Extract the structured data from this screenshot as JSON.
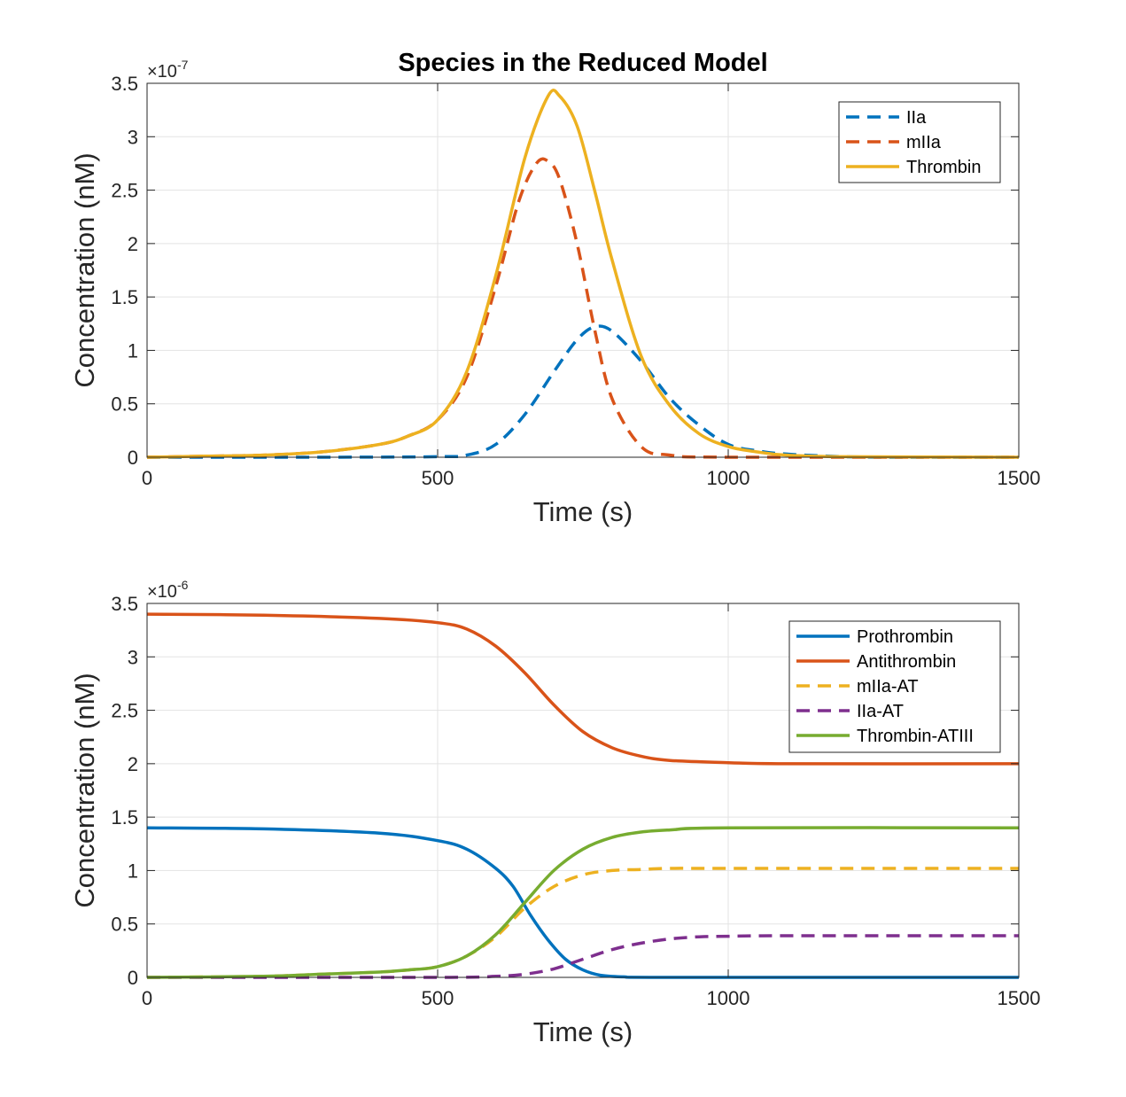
{
  "chart_data": [
    {
      "type": "line",
      "title": "Species in the Reduced Model",
      "xlabel": "Time (s)",
      "ylabel": "Concentration (nM)",
      "xlim": [
        0,
        1500
      ],
      "ylim": [
        0,
        3.5
      ],
      "xticks": [
        "0",
        "500",
        "1000",
        "1500"
      ],
      "yticks": [
        "0",
        "0.5",
        "1",
        "1.5",
        "2",
        "2.5",
        "3",
        "3.5"
      ],
      "y_exponent_base": "×10",
      "y_exponent": "-7",
      "grid": true,
      "legend_position": "top-right",
      "series": [
        {
          "name": "IIa",
          "color": "#0072BD",
          "dashed": true,
          "x": [
            0,
            300,
            500,
            550,
            600,
            650,
            700,
            740,
            770,
            800,
            850,
            900,
            950,
            1000,
            1050,
            1100,
            1200,
            1300,
            1500
          ],
          "y": [
            0,
            0,
            0.005,
            0.02,
            0.12,
            0.4,
            0.8,
            1.1,
            1.22,
            1.18,
            0.9,
            0.55,
            0.3,
            0.12,
            0.06,
            0.03,
            0.005,
            0,
            0
          ]
        },
        {
          "name": "mIIa",
          "color": "#D95319",
          "dashed": true,
          "x": [
            0,
            100,
            200,
            300,
            400,
            450,
            500,
            550,
            600,
            640,
            670,
            690,
            710,
            740,
            770,
            800,
            850,
            900,
            1000,
            1500
          ],
          "y": [
            0,
            0.01,
            0.02,
            0.05,
            0.12,
            0.2,
            0.35,
            0.75,
            1.6,
            2.4,
            2.75,
            2.77,
            2.6,
            2.0,
            1.2,
            0.55,
            0.1,
            0.02,
            0,
            0
          ]
        },
        {
          "name": "Thrombin",
          "color": "#EDB120",
          "dashed": false,
          "x": [
            0,
            100,
            200,
            300,
            400,
            450,
            500,
            550,
            600,
            650,
            690,
            710,
            740,
            770,
            800,
            850,
            900,
            950,
            1000,
            1050,
            1100,
            1200,
            1500
          ],
          "y": [
            0,
            0.01,
            0.02,
            0.05,
            0.12,
            0.2,
            0.35,
            0.8,
            1.7,
            2.8,
            3.38,
            3.38,
            3.1,
            2.5,
            1.85,
            0.95,
            0.48,
            0.22,
            0.1,
            0.05,
            0.02,
            0.005,
            0
          ]
        }
      ]
    },
    {
      "type": "line",
      "title": "",
      "xlabel": "Time (s)",
      "ylabel": "Concentration (nM)",
      "xlim": [
        0,
        1500
      ],
      "ylim": [
        0,
        3.5
      ],
      "xticks": [
        "0",
        "500",
        "1000",
        "1500"
      ],
      "yticks": [
        "0",
        "0.5",
        "1",
        "1.5",
        "2",
        "2.5",
        "3",
        "3.5"
      ],
      "y_exponent_base": "×10",
      "y_exponent": "-6",
      "grid": true,
      "legend_position": "top-right",
      "series": [
        {
          "name": "Prothrombin",
          "color": "#0072BD",
          "dashed": false,
          "x": [
            0,
            200,
            400,
            500,
            550,
            600,
            630,
            660,
            690,
            720,
            750,
            780,
            820,
            900,
            1500
          ],
          "y": [
            1.4,
            1.39,
            1.35,
            1.28,
            1.2,
            1.02,
            0.85,
            0.58,
            0.35,
            0.17,
            0.07,
            0.02,
            0.005,
            0,
            0
          ]
        },
        {
          "name": "Antithrombin",
          "color": "#D95319",
          "dashed": false,
          "x": [
            0,
            200,
            400,
            500,
            550,
            600,
            650,
            700,
            750,
            800,
            850,
            900,
            1000,
            1100,
            1500
          ],
          "y": [
            3.4,
            3.39,
            3.36,
            3.32,
            3.26,
            3.1,
            2.85,
            2.55,
            2.3,
            2.15,
            2.07,
            2.03,
            2.01,
            2.0,
            2.0
          ]
        },
        {
          "name": "mIIa-AT",
          "color": "#EDB120",
          "dashed": true,
          "x": [
            0,
            200,
            300,
            400,
            450,
            500,
            550,
            600,
            650,
            700,
            750,
            800,
            850,
            900,
            1000,
            1500
          ],
          "y": [
            0,
            0.01,
            0.03,
            0.05,
            0.07,
            0.1,
            0.2,
            0.38,
            0.65,
            0.85,
            0.96,
            1.0,
            1.01,
            1.02,
            1.02,
            1.02
          ]
        },
        {
          "name": "IIa-AT",
          "color": "#7E2F8E",
          "dashed": true,
          "x": [
            0,
            500,
            600,
            650,
            700,
            750,
            800,
            850,
            900,
            950,
            1000,
            1100,
            1500
          ],
          "y": [
            0,
            0,
            0.01,
            0.03,
            0.08,
            0.17,
            0.26,
            0.32,
            0.36,
            0.38,
            0.385,
            0.39,
            0.39
          ]
        },
        {
          "name": "Thrombin-ATIII",
          "color": "#77AC30",
          "dashed": false,
          "x": [
            0,
            200,
            300,
            400,
            450,
            500,
            550,
            600,
            650,
            700,
            750,
            800,
            850,
            900,
            1000,
            1500
          ],
          "y": [
            0,
            0.01,
            0.03,
            0.05,
            0.07,
            0.1,
            0.2,
            0.4,
            0.7,
            1.0,
            1.2,
            1.31,
            1.36,
            1.38,
            1.4,
            1.4
          ]
        }
      ]
    }
  ]
}
